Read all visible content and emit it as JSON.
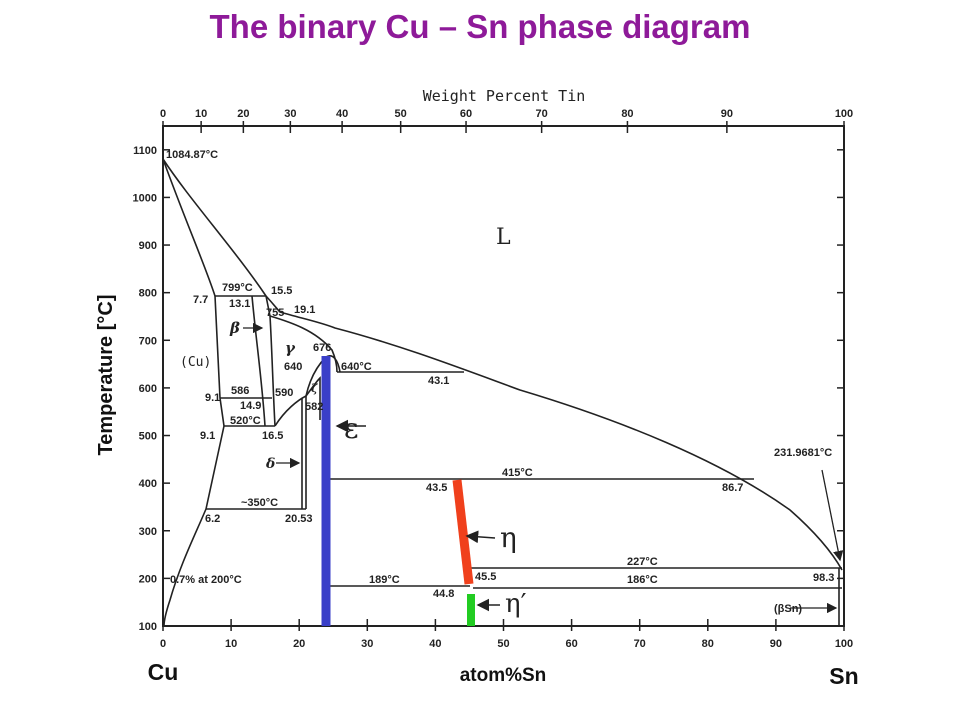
{
  "title": "The binary Cu – Sn phase diagram",
  "axes": {
    "top_title": "Weight Percent Tin",
    "bottom_title": "atom%Sn",
    "left_title": "Temperature [°C]",
    "left_element": "Cu",
    "right_element": "Sn",
    "x_ticks_atomic": [
      "0",
      "10",
      "20",
      "30",
      "40",
      "50",
      "60",
      "70",
      "80",
      "90",
      "100"
    ],
    "x_ticks_weight": [
      {
        "label": "0",
        "at": 0
      },
      {
        "label": "10",
        "at": 5.6
      },
      {
        "label": "20",
        "at": 11.8
      },
      {
        "label": "30",
        "at": 18.7
      },
      {
        "label": "40",
        "at": 26.3
      },
      {
        "label": "50",
        "at": 34.9
      },
      {
        "label": "60",
        "at": 44.5
      },
      {
        "label": "70",
        "at": 55.6
      },
      {
        "label": "80",
        "at": 68.2
      },
      {
        "label": "90",
        "at": 82.8
      },
      {
        "label": "100",
        "at": 100
      }
    ],
    "y_ticks": [
      "100",
      "200",
      "300",
      "400",
      "500",
      "600",
      "700",
      "800",
      "900",
      "1000",
      "1100"
    ]
  },
  "regions": {
    "liquid": "L",
    "cu_solid": "(Cu)",
    "beta": "β",
    "gamma": "γ",
    "delta": "δ",
    "zeta": "ζ",
    "beta_sn": "(βSn)"
  },
  "annotations": {
    "cu_melting": "1084.87°C",
    "a_799": "799°C",
    "a_15_5": "15.5",
    "a_7_7": "7.7",
    "a_13_1": "13.1",
    "a_755": "755",
    "a_19_1": "19.1",
    "a_676": "676",
    "a_640_left": "640",
    "a_640c": "640°C",
    "a_43_1": "43.1",
    "a_586": "586",
    "a_590": "590",
    "a_9_1_upper": "9.1",
    "a_14_9": "14.9",
    "a_582": "582",
    "a_520": "520°C",
    "a_9_1_lower": "9.1",
    "a_16_5": "16.5",
    "a_415": "415°C",
    "a_43_5": "43.5",
    "a_86_7": "86.7",
    "a_231": "231.9681°C",
    "a_350": "~350°C",
    "a_6_2": "6.2",
    "a_20_53": "20.53",
    "a_227": "227°C",
    "a_186": "186°C",
    "a_98_3": "98.3",
    "a_189": "189°C",
    "a_45_5": "45.5",
    "a_44_8": "44.8",
    "a_solubility": "0.7% at 200°C"
  },
  "phase_markers": {
    "epsilon": "ε",
    "eta": "η",
    "eta_prime": "η′"
  },
  "colors": {
    "title": "#8e1a99",
    "epsilon": "#3a3fc8",
    "eta": "#f0401c",
    "eta_prime": "#22cc22"
  }
}
